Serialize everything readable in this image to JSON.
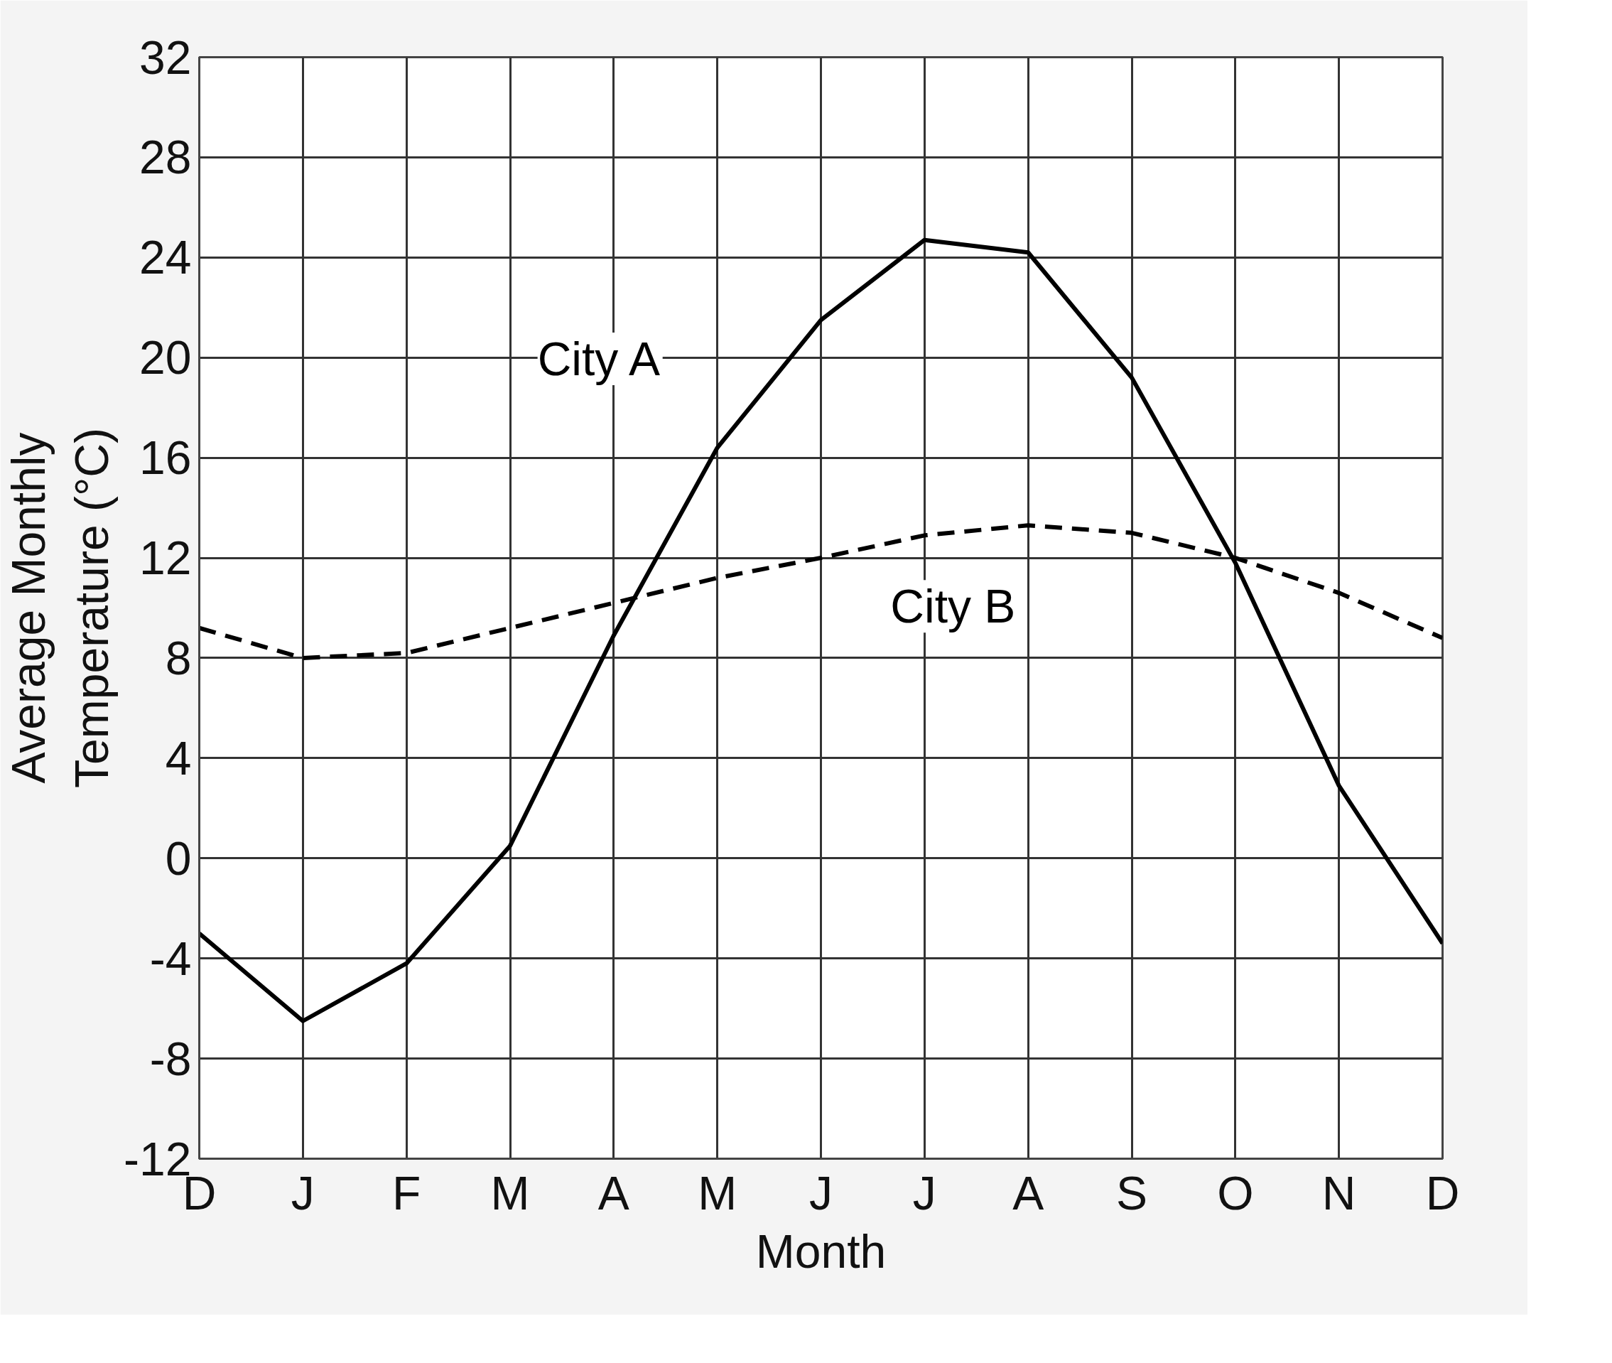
{
  "chart_data": {
    "type": "line",
    "xlabel": "Month",
    "ylabel": "Average Monthly\nTemperature (°C)",
    "categories": [
      "D",
      "J",
      "F",
      "M",
      "A",
      "M",
      "J",
      "J",
      "A",
      "S",
      "O",
      "N",
      "D"
    ],
    "ylim": [
      -12,
      32
    ],
    "yticks": [
      -12,
      -8,
      -4,
      0,
      4,
      8,
      12,
      16,
      20,
      24,
      28,
      32
    ],
    "grid": true,
    "marker": "none",
    "series": [
      {
        "name": "City A",
        "color": "#000000",
        "line_style": "solid",
        "values": [
          -3.0,
          -6.5,
          -4.2,
          0.5,
          8.9,
          16.4,
          21.5,
          24.7,
          24.2,
          19.2,
          11.8,
          2.9,
          -3.4
        ]
      },
      {
        "name": "City B",
        "color": "#000000",
        "line_style": "dashed",
        "values": [
          9.2,
          8.0,
          8.2,
          9.2,
          10.2,
          11.2,
          12.0,
          12.9,
          13.3,
          13.0,
          12.0,
          10.6,
          8.8
        ]
      }
    ]
  }
}
